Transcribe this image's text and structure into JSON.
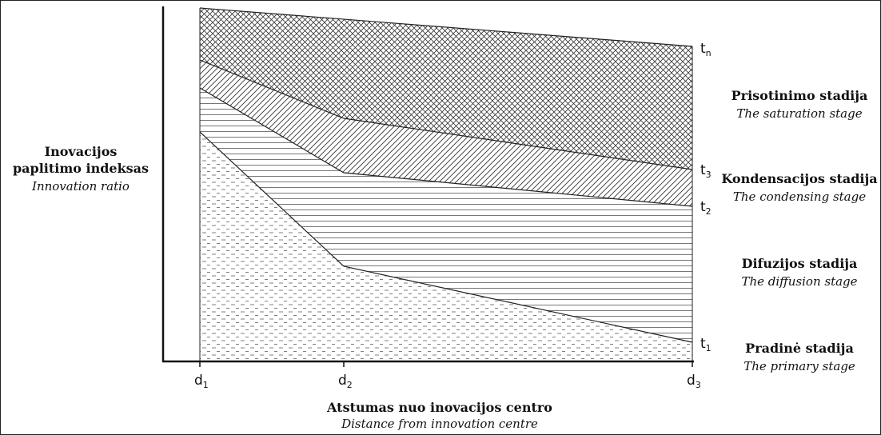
{
  "y_axis": {
    "title_lt_line1": "Inovacijos",
    "title_lt_line2": "paplitimo indeksas",
    "title_en": "Innovation ratio"
  },
  "x_axis": {
    "title_lt": "Atstumas nuo inovacijos centro",
    "title_en": "Distance from innovation centre"
  },
  "x_ticks": [
    {
      "base": "d",
      "sub": "1"
    },
    {
      "base": "d",
      "sub": "2"
    },
    {
      "base": "d",
      "sub": "3"
    }
  ],
  "curves": [
    {
      "base": "t",
      "sub": "n"
    },
    {
      "base": "t",
      "sub": "3"
    },
    {
      "base": "t",
      "sub": "2"
    },
    {
      "base": "t",
      "sub": "1"
    }
  ],
  "stages": [
    {
      "lt": "Prisotinimo stadija",
      "en": "The saturation stage"
    },
    {
      "lt": "Kondensacijos stadija",
      "en": "The condensing stage"
    },
    {
      "lt": "Difuzijos stadija",
      "en": "The diffusion stage"
    },
    {
      "lt": "Pradinė stadija",
      "en": "The primary stage"
    }
  ]
}
